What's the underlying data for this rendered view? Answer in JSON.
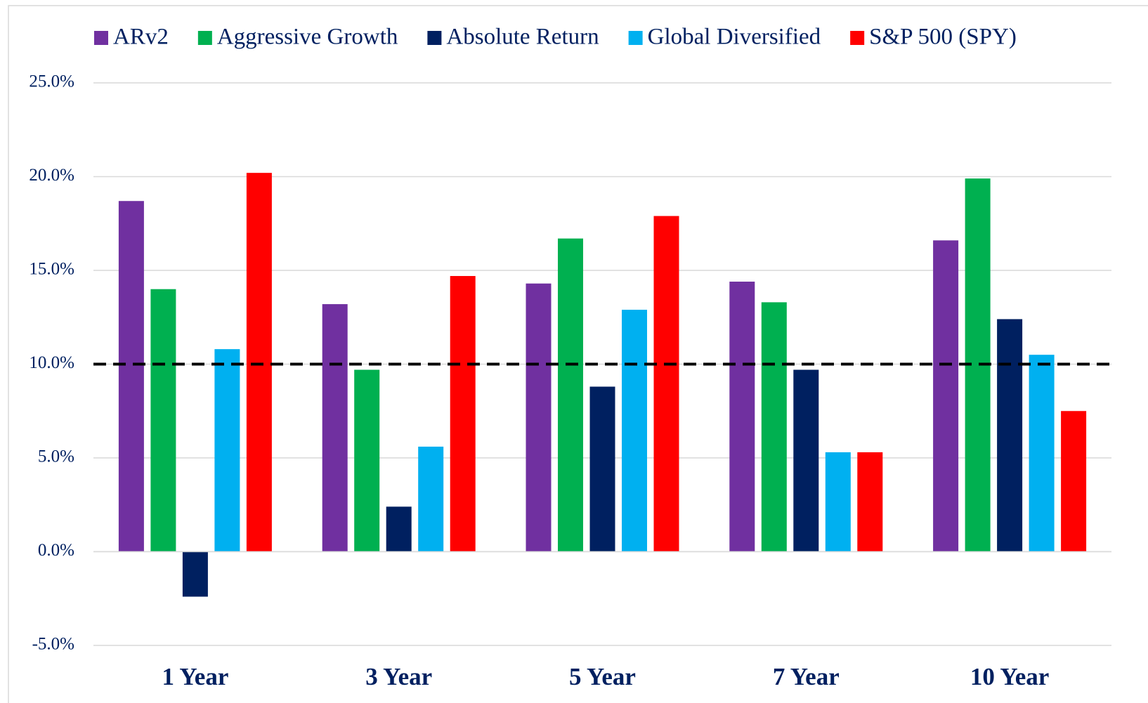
{
  "chart_data": {
    "type": "bar",
    "categories": [
      "1 Year",
      "3 Year",
      "5 Year",
      "7 Year",
      "10 Year"
    ],
    "series": [
      {
        "name": "ARv2",
        "color": "#7030a0",
        "values": [
          18.7,
          13.2,
          14.3,
          14.4,
          16.6
        ]
      },
      {
        "name": "Aggressive Growth",
        "color": "#00b050",
        "values": [
          14.0,
          9.7,
          16.7,
          13.3,
          19.9
        ]
      },
      {
        "name": "Absolute Return",
        "color": "#002060",
        "values": [
          -2.4,
          2.4,
          8.8,
          9.7,
          12.4
        ]
      },
      {
        "name": "Global Diversified",
        "color": "#00b0f0",
        "values": [
          10.8,
          5.6,
          12.9,
          5.3,
          10.5
        ]
      },
      {
        "name": "S&P 500 (SPY)",
        "color": "#ff0000",
        "values": [
          20.2,
          14.7,
          17.9,
          5.3,
          7.5
        ]
      }
    ],
    "ylim": [
      -5,
      25
    ],
    "yticks": [
      {
        "value": -5,
        "label": "-5.0%"
      },
      {
        "value": 0,
        "label": "0.0%"
      },
      {
        "value": 5,
        "label": "5.0%"
      },
      {
        "value": 10,
        "label": "10.0%"
      },
      {
        "value": 15,
        "label": "15.0%"
      },
      {
        "value": 20,
        "label": "20.0%"
      },
      {
        "value": 25,
        "label": "25.0%"
      }
    ],
    "grid": true,
    "reference_line": 10,
    "legend": "top"
  }
}
